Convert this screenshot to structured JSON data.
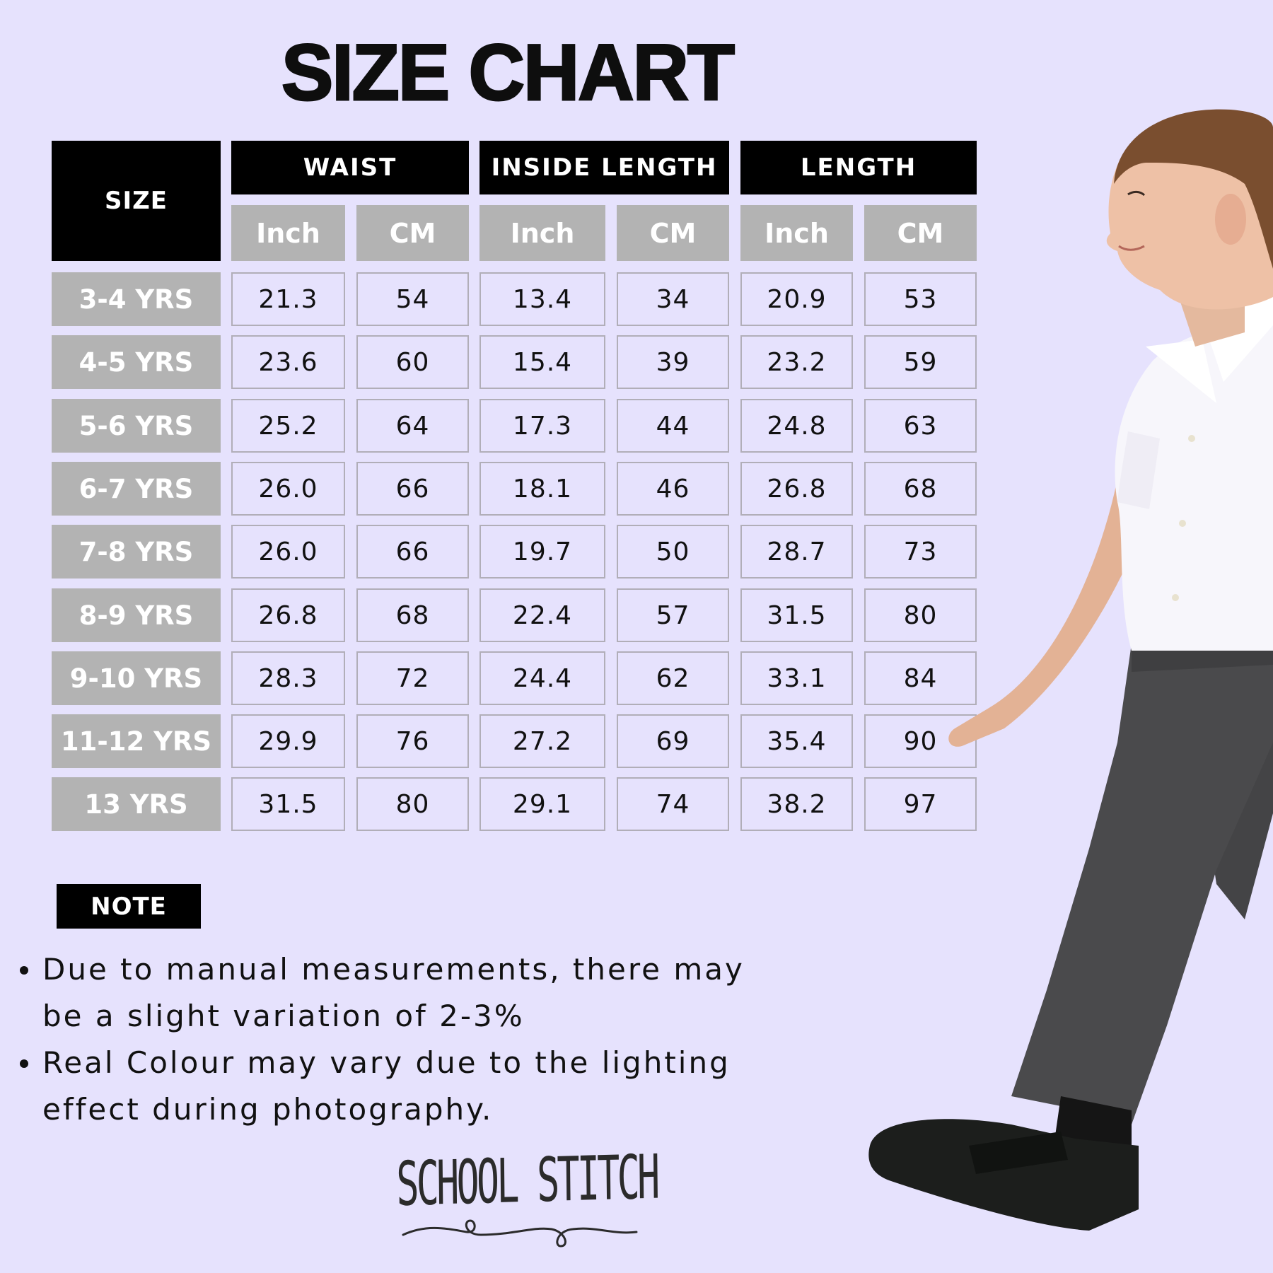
{
  "title": "SIZE CHART",
  "table": {
    "size_header": "SIZE",
    "groups": [
      {
        "label": "WAIST",
        "units": [
          "Inch",
          "CM"
        ]
      },
      {
        "label": "INSIDE LENGTH",
        "units": [
          "Inch",
          "CM"
        ]
      },
      {
        "label": "LENGTH",
        "units": [
          "Inch",
          "CM"
        ]
      }
    ],
    "rows": [
      {
        "size": "3-4 YRS",
        "values": [
          "21.3",
          "54",
          "13.4",
          "34",
          "20.9",
          "53"
        ]
      },
      {
        "size": "4-5 YRS",
        "values": [
          "23.6",
          "60",
          "15.4",
          "39",
          "23.2",
          "59"
        ]
      },
      {
        "size": "5-6 YRS",
        "values": [
          "25.2",
          "64",
          "17.3",
          "44",
          "24.8",
          "63"
        ]
      },
      {
        "size": "6-7 YRS",
        "values": [
          "26.0",
          "66",
          "18.1",
          "46",
          "26.8",
          "68"
        ]
      },
      {
        "size": "7-8 YRS",
        "values": [
          "26.0",
          "66",
          "19.7",
          "50",
          "28.7",
          "73"
        ]
      },
      {
        "size": "8-9 YRS",
        "values": [
          "26.8",
          "68",
          "22.4",
          "57",
          "31.5",
          "80"
        ]
      },
      {
        "size": "9-10 YRS",
        "values": [
          "28.3",
          "72",
          "24.4",
          "62",
          "33.1",
          "84"
        ]
      },
      {
        "size": "11-12 YRS",
        "values": [
          "29.9",
          "76",
          "27.2",
          "69",
          "35.4",
          "90"
        ]
      },
      {
        "size": "13 YRS",
        "values": [
          "31.5",
          "80",
          "29.1",
          "74",
          "38.2",
          "97"
        ]
      }
    ]
  },
  "note": {
    "label": "NOTE",
    "bullets": [
      "Due to manual measurements, there may be a slight variation of 2-3%",
      "Real Colour may vary due to the lighting effect during photography."
    ]
  },
  "brand": {
    "name": "SCHOOL STITCH"
  },
  "colors": {
    "background": "#E6E2FD",
    "header_black": "#000000",
    "header_gray": "#B3B3B3",
    "cell_border": "#B1AEB8",
    "trousers": "#4a4a4c",
    "shirt": "#f7f6fb"
  },
  "chart_data": {
    "type": "table",
    "title": "SIZE CHART",
    "columns": [
      "SIZE",
      "WAIST Inch",
      "WAIST CM",
      "INSIDE LENGTH Inch",
      "INSIDE LENGTH CM",
      "LENGTH Inch",
      "LENGTH CM"
    ],
    "categories": [
      "3-4 YRS",
      "4-5 YRS",
      "5-6 YRS",
      "6-7 YRS",
      "7-8 YRS",
      "8-9 YRS",
      "9-10 YRS",
      "11-12 YRS",
      "13 YRS"
    ],
    "series": [
      {
        "name": "WAIST Inch",
        "values": [
          21.3,
          23.6,
          25.2,
          26.0,
          26.0,
          26.8,
          28.3,
          29.9,
          31.5
        ]
      },
      {
        "name": "WAIST CM",
        "values": [
          54,
          60,
          64,
          66,
          66,
          68,
          72,
          76,
          80
        ]
      },
      {
        "name": "INSIDE LENGTH Inch",
        "values": [
          13.4,
          15.4,
          17.3,
          18.1,
          19.7,
          22.4,
          24.4,
          27.2,
          29.1
        ]
      },
      {
        "name": "INSIDE LENGTH CM",
        "values": [
          34,
          39,
          44,
          46,
          50,
          57,
          62,
          69,
          74
        ]
      },
      {
        "name": "LENGTH Inch",
        "values": [
          20.9,
          23.2,
          24.8,
          26.8,
          28.7,
          31.5,
          33.1,
          35.4,
          38.2
        ]
      },
      {
        "name": "LENGTH CM",
        "values": [
          53,
          59,
          63,
          68,
          73,
          80,
          84,
          90,
          97
        ]
      }
    ]
  }
}
